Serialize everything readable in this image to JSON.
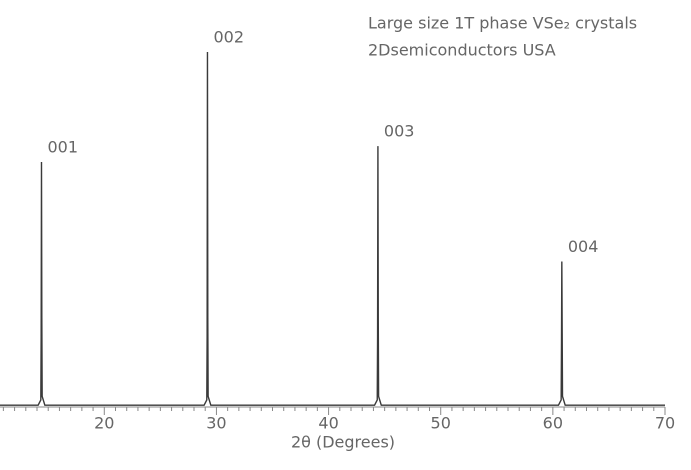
{
  "chart_data": {
    "type": "line",
    "title": "Large size 1T phase VSe₂ crystals",
    "subtitle": "2Dsemiconductors USA",
    "x_label": "2θ (Degrees)",
    "xlim": [
      10.7,
      70
    ],
    "ylim": [
      0,
      100
    ],
    "xticks": [
      20,
      30,
      40,
      50,
      60,
      70
    ],
    "xminorticks": [
      11,
      12,
      13,
      14,
      15,
      16,
      17,
      18,
      19,
      21,
      22,
      23,
      24,
      25,
      26,
      27,
      28,
      29,
      31,
      32,
      33,
      34,
      35,
      36,
      37,
      38,
      39,
      41,
      42,
      43,
      44,
      45,
      46,
      47,
      48,
      49,
      51,
      52,
      53,
      54,
      55,
      56,
      57,
      58,
      59,
      61,
      62,
      63,
      64,
      65,
      66,
      67,
      68,
      69
    ],
    "series": [
      {
        "color": "#3a3a3a",
        "x": [
          10.7,
          14.1,
          14.34,
          14.37,
          14.4,
          14.43,
          14.46,
          14.7,
          28.9,
          29.14,
          29.17,
          29.2,
          29.23,
          29.26,
          29.5,
          44.1,
          44.34,
          44.37,
          44.4,
          44.43,
          44.46,
          44.7,
          60.5,
          60.74,
          60.77,
          60.8,
          60.83,
          60.86,
          61.1,
          70
        ],
        "values": [
          0.5,
          0.5,
          2,
          20,
          69,
          25,
          3,
          0.5,
          0.5,
          2,
          20,
          100,
          25,
          3,
          0.5,
          0.5,
          2,
          20,
          73.5,
          25,
          3,
          0.5,
          0.5,
          2,
          18,
          41,
          22,
          3,
          0.5,
          0.5
        ]
      }
    ],
    "annotations": [
      {
        "text": "001",
        "x": 14.4,
        "y": 69
      },
      {
        "text": "002",
        "x": 29.2,
        "y": 100
      },
      {
        "text": "003",
        "x": 44.4,
        "y": 73.5
      },
      {
        "text": "004",
        "x": 60.8,
        "y": 41
      }
    ]
  }
}
